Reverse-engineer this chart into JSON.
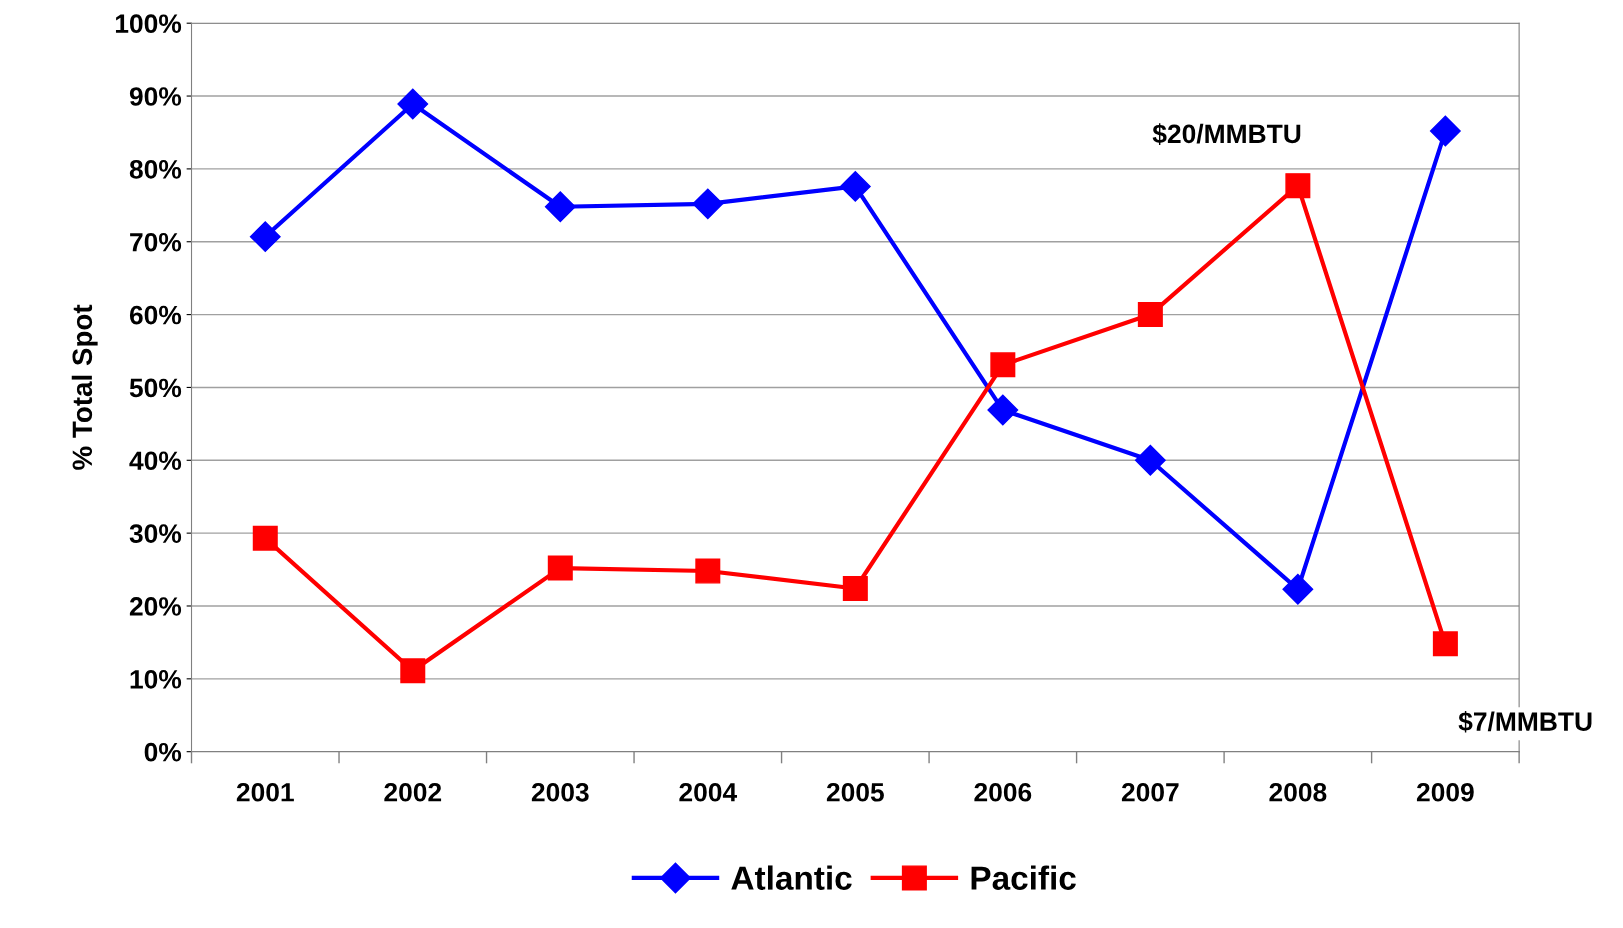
{
  "chart_data": {
    "type": "line",
    "ylabel": "% Total Spot",
    "categories": [
      "2001",
      "2002",
      "2003",
      "2004",
      "2005",
      "2006",
      "2007",
      "2008",
      "2009"
    ],
    "series": [
      {
        "name": "Atlantic",
        "color": "#0000ff",
        "marker": "diamond",
        "values": [
          70.7,
          88.9,
          74.8,
          75.2,
          77.6,
          46.9,
          40,
          22.3,
          85.2
        ]
      },
      {
        "name": "Pacific",
        "color": "#ff0000",
        "marker": "square",
        "values": [
          29.3,
          11.1,
          25.2,
          24.8,
          22.4,
          53.1,
          60,
          77.7,
          14.8
        ]
      }
    ],
    "ylim": [
      0,
      100
    ],
    "yticks": [
      {
        "value": 0,
        "label": "0%"
      },
      {
        "value": 10,
        "label": "10%"
      },
      {
        "value": 20,
        "label": "20%"
      },
      {
        "value": 30,
        "label": "30%"
      },
      {
        "value": 40,
        "label": "40%"
      },
      {
        "value": 50,
        "label": "50%"
      },
      {
        "value": 60,
        "label": "60%"
      },
      {
        "value": 70,
        "label": "70%"
      },
      {
        "value": 80,
        "label": "80%"
      },
      {
        "value": 90,
        "label": "90%"
      },
      {
        "value": 100,
        "label": "100%"
      }
    ],
    "grid": "y",
    "legend": "bottom",
    "line_style": "solid",
    "annotations": [
      "$20/MMBTU",
      "$7/MMBTU"
    ]
  }
}
